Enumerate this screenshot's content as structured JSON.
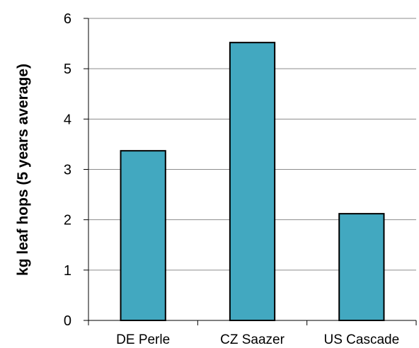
{
  "chart_data": {
    "type": "bar",
    "title": "",
    "xlabel": "",
    "ylabel": "kg leaf hops (5 years average)",
    "categories": [
      "DE Perle",
      "CZ Saazer",
      "US Cascade"
    ],
    "values": [
      3.37,
      5.52,
      2.12
    ],
    "ylim": [
      0,
      6
    ],
    "yticks": [
      0,
      1,
      2,
      3,
      4,
      5,
      6
    ],
    "grid": true,
    "legend": "none",
    "colors": {
      "bar": "#42A8C0",
      "bar_edge": "#000000",
      "grid": "#8C8C8C"
    }
  }
}
